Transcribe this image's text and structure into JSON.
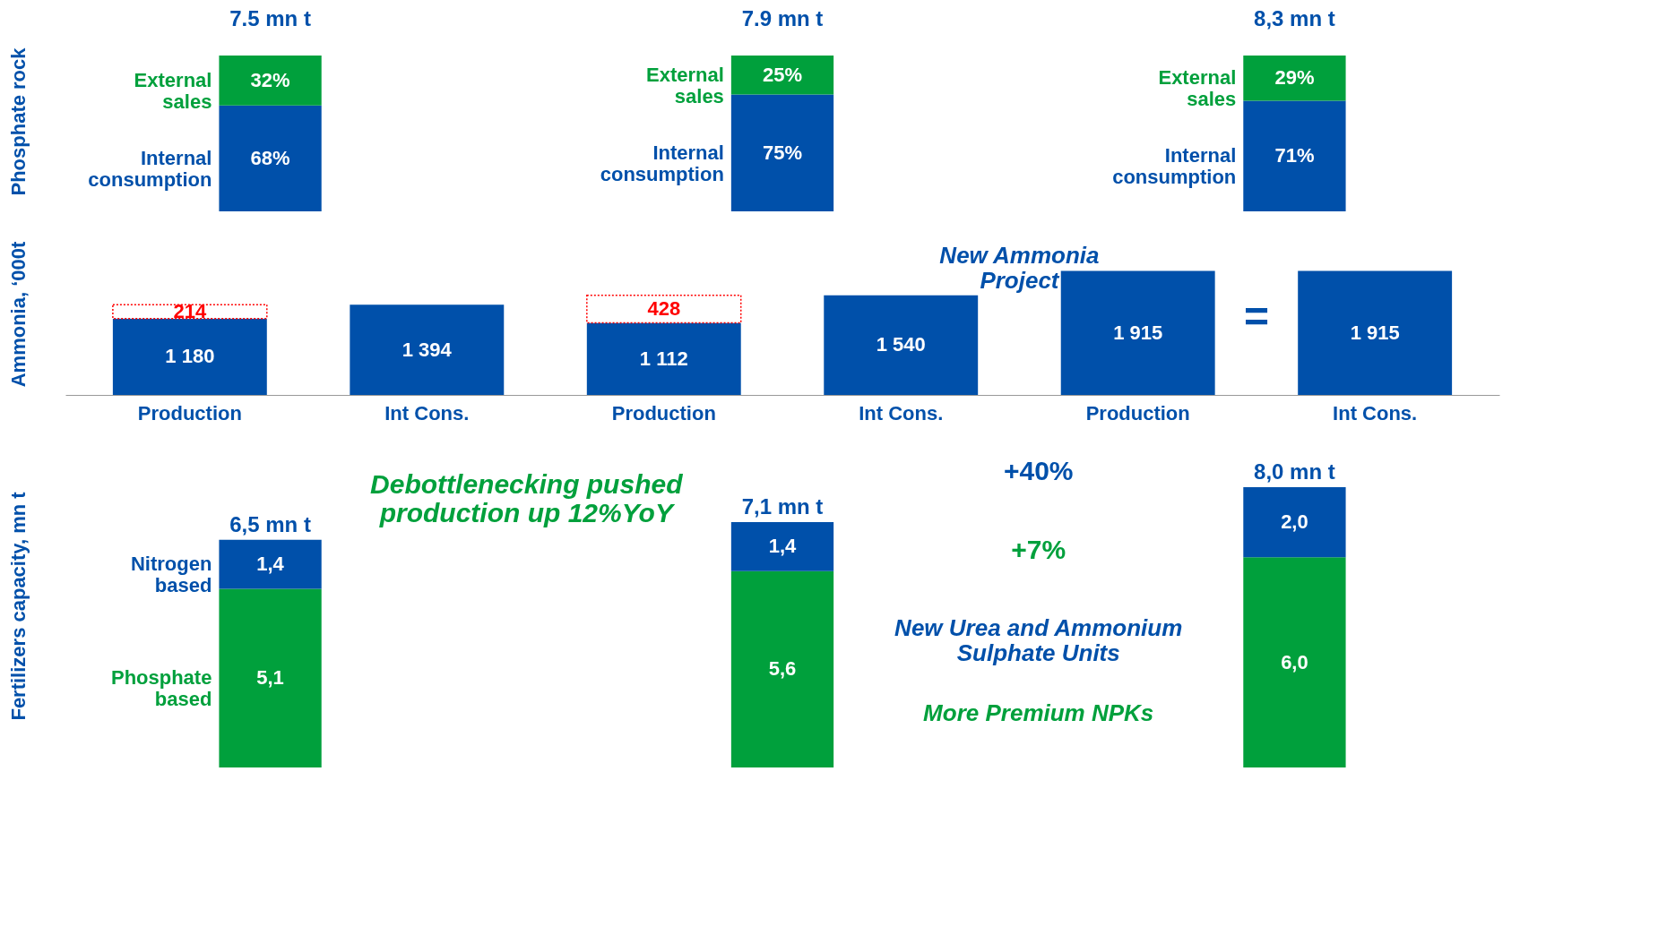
{
  "chart_data": [
    {
      "type": "bar",
      "stacked": true,
      "ylabel": "Phosphate rock",
      "categories": [
        null,
        null,
        null
      ],
      "tick_labels": false,
      "series": [
        {
          "name": "Internal consumption",
          "color": "#0050aa",
          "values": [
            68,
            75,
            71
          ],
          "value_labels": [
            "68%",
            "75%",
            "71%"
          ]
        },
        {
          "name": "External sales",
          "color": "#00a03c",
          "values": [
            32,
            25,
            29
          ],
          "value_labels": [
            "32%",
            "25%",
            "29%"
          ]
        }
      ],
      "annotations": [
        "7.5 mn t",
        "7.9 mn t",
        "8,3 mn t"
      ]
    },
    {
      "type": "bar",
      "stacked": true,
      "ylabel": "Ammonia, ‘000t",
      "categories": [
        "Production",
        "Int Cons.",
        "Production",
        "Int Cons.",
        "Production",
        "Int Cons."
      ],
      "tick_labels": "x",
      "series": [
        {
          "color": "#0050aa",
          "values": [
            1180,
            1394,
            1112,
            1540,
            1915,
            1915
          ],
          "value_labels": [
            "1 180",
            "1 394",
            "1 112",
            "1 540",
            "1 915",
            "1 915"
          ]
        },
        {
          "color": "#ffffff",
          "line_style": "dotted",
          "values": [
            214,
            null,
            428,
            null,
            null,
            null
          ],
          "value_labels": [
            "214",
            null,
            "428",
            null,
            null,
            null
          ]
        }
      ],
      "annotations": [
        "New Ammonia Project",
        "="
      ]
    },
    {
      "type": "bar",
      "stacked": true,
      "ylabel": "Fertilizers capacity, mn t",
      "categories": [
        null,
        null,
        null
      ],
      "tick_labels": false,
      "series": [
        {
          "name": "Phosphate based",
          "color": "#00a03c",
          "values": [
            5.1,
            5.6,
            6.0
          ],
          "value_labels": [
            "5,1",
            "5,6",
            "6,0"
          ]
        },
        {
          "name": "Nitrogen based",
          "color": "#0050aa",
          "values": [
            1.4,
            1.4,
            2.0
          ],
          "value_labels": [
            "1,4",
            "1,4",
            "2,0"
          ]
        }
      ],
      "totals": [
        "6,5 mn t",
        "7,1 mn t",
        "8,0 mn t"
      ],
      "annotations": [
        "Debottlenecking pushed production up 12%YoY",
        "+40%",
        "+7%",
        "New Urea and Ammonium Sulphate Units",
        "More Premium NPKs"
      ]
    }
  ]
}
